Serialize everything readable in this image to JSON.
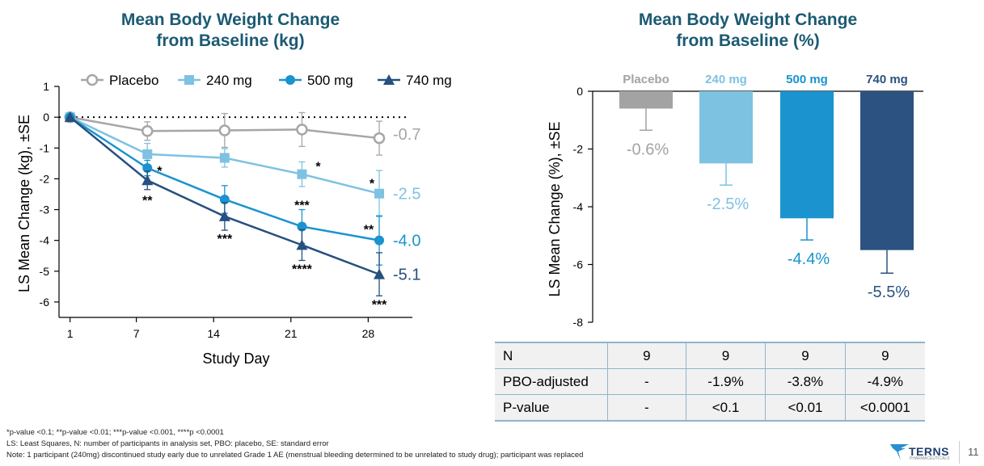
{
  "left_chart": {
    "title_line1": "Mean Body Weight Change",
    "title_line2": "from Baseline (kg)"
  },
  "right_chart": {
    "title_line1": "Mean Body Weight Change",
    "title_line2": "from Baseline (%)"
  },
  "chart_data": [
    {
      "type": "line",
      "title": "Mean Body Weight Change from Baseline (kg)",
      "xlabel": "Study Day",
      "ylabel": "LS Mean Change (kg), ±SE",
      "x_ticks": [
        1,
        7,
        14,
        21,
        28
      ],
      "y_ticks": [
        1,
        0,
        -1,
        -2,
        -3,
        -4,
        -5,
        -6
      ],
      "xlim": [
        0,
        32
      ],
      "ylim": [
        -6.5,
        1
      ],
      "reference_line": 0,
      "legend_position": "top",
      "series": [
        {
          "name": "Placebo",
          "color": "#a6a6a6",
          "marker": "open-circle",
          "x": [
            1,
            8,
            15,
            22,
            29
          ],
          "y": [
            0,
            -0.45,
            -0.43,
            -0.4,
            -0.68
          ],
          "se": [
            0,
            0.3,
            0.55,
            0.55,
            0.55
          ],
          "stars": [
            "",
            "",
            "",
            "",
            ""
          ],
          "end_label": "-0.7"
        },
        {
          "name": "240 mg",
          "color": "#7ec2e2",
          "marker": "square",
          "x": [
            1,
            8,
            15,
            22,
            29
          ],
          "y": [
            0,
            -1.2,
            -1.32,
            -1.85,
            -2.48
          ],
          "se": [
            0,
            0.35,
            0.3,
            0.4,
            0.75
          ],
          "stars": [
            "",
            "*",
            "",
            "*",
            "*"
          ],
          "end_label": "-2.5"
        },
        {
          "name": "500 mg",
          "color": "#1a93cf",
          "marker": "circle",
          "x": [
            1,
            8,
            15,
            22,
            29
          ],
          "y": [
            0,
            -1.65,
            -2.67,
            -3.55,
            -4.0
          ],
          "se": [
            0,
            0.25,
            0.45,
            0.55,
            0.8
          ],
          "stars": [
            "",
            "",
            "",
            "***",
            "**"
          ],
          "end_label": "-4.0"
        },
        {
          "name": "740 mg",
          "color": "#25507f",
          "marker": "triangle",
          "x": [
            1,
            8,
            15,
            22,
            29
          ],
          "y": [
            0,
            -2.05,
            -3.22,
            -4.15,
            -5.1
          ],
          "se": [
            0,
            0.3,
            0.45,
            0.5,
            0.7
          ],
          "stars": [
            "",
            "**",
            "***",
            "****",
            "***"
          ],
          "end_label": "-5.1"
        }
      ]
    },
    {
      "type": "bar",
      "title": "Mean Body Weight Change from Baseline (%)",
      "ylabel": "LS Mean Change (%), ±SE",
      "categories": [
        "Placebo",
        "240 mg",
        "500 mg",
        "740 mg"
      ],
      "colors": [
        "#a3a3a3",
        "#7ec2e2",
        "#1a93cf",
        "#2b5280"
      ],
      "values": [
        -0.6,
        -2.5,
        -4.4,
        -5.5
      ],
      "se": [
        0.75,
        0.75,
        0.75,
        0.8
      ],
      "value_labels": [
        "-0.6%",
        "-2.5%",
        "-4.4%",
        "-5.5%"
      ],
      "y_ticks": [
        0,
        -2,
        -4,
        -6,
        -8
      ],
      "ylim": [
        -8,
        0
      ]
    }
  ],
  "table": {
    "rows": [
      {
        "label": "N",
        "values": [
          "9",
          "9",
          "9",
          "9"
        ]
      },
      {
        "label": "PBO-adjusted",
        "values": [
          "-",
          "-1.9%",
          "-3.8%",
          "-4.9%"
        ]
      },
      {
        "label": "P-value",
        "values": [
          "-",
          "<0.1",
          "<0.01",
          "<0.0001"
        ]
      }
    ]
  },
  "footnotes": {
    "line1": "*p-value <0.1; **p-value <0.01; ***p-value <0.001, ****p <0.0001",
    "line2": "LS: Least Squares, N: number of participants in analysis set, PBO: placebo, SE: standard error",
    "line3": "Note: 1 participant (240mg) discontinued study early due to unrelated Grade 1 AE (menstrual bleeding determined to be unrelated to study drug); participant was replaced"
  },
  "logo": {
    "text": "TERNS",
    "subtext": "PHARMACEUTICALS"
  },
  "page_number": "11"
}
